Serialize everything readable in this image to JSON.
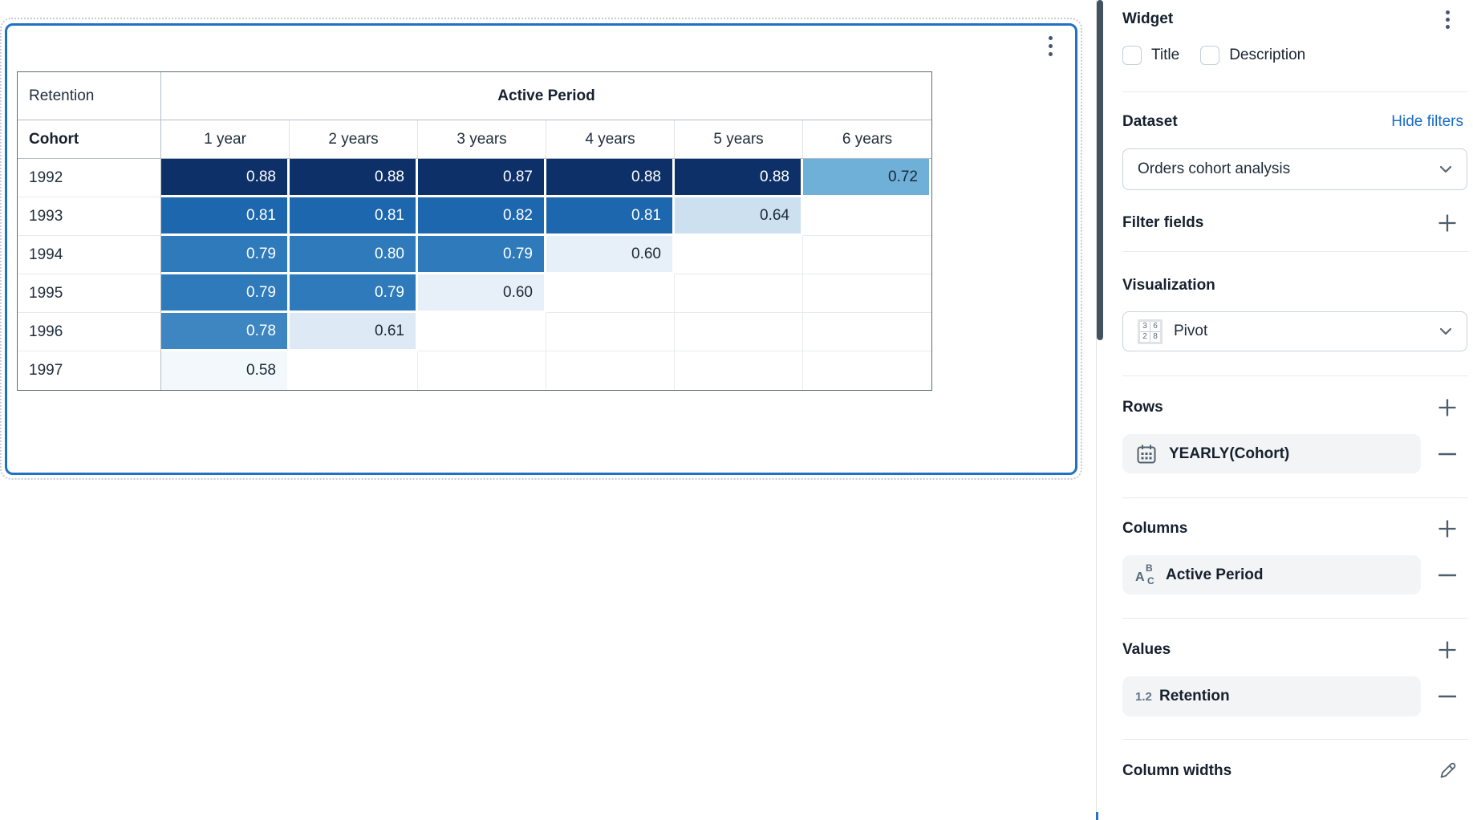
{
  "chart_data": {
    "type": "heatmap",
    "measure_label": "Retention",
    "column_group_label": "Active Period",
    "row_dimension_label": "Cohort",
    "columns": [
      "1 year",
      "2 years",
      "3 years",
      "4 years",
      "5 years",
      "6 years"
    ],
    "rows": [
      "1992",
      "1993",
      "1994",
      "1995",
      "1996",
      "1997"
    ],
    "values": [
      [
        0.88,
        0.88,
        0.87,
        0.88,
        0.88,
        0.72
      ],
      [
        0.81,
        0.81,
        0.82,
        0.81,
        0.64,
        null
      ],
      [
        0.79,
        0.8,
        0.79,
        0.6,
        null,
        null
      ],
      [
        0.79,
        0.79,
        0.6,
        null,
        null,
        null
      ],
      [
        0.78,
        0.61,
        null,
        null,
        null,
        null
      ],
      [
        0.58,
        null,
        null,
        null,
        null,
        null
      ]
    ],
    "value_format": "0.00",
    "heat_scale": [
      {
        "min": 0.85,
        "bg": "#0d3069",
        "fg": "#ffffff"
      },
      {
        "min": 0.805,
        "bg": "#1c67ae",
        "fg": "#ffffff"
      },
      {
        "min": 0.79,
        "bg": "#2e7abb",
        "fg": "#ffffff"
      },
      {
        "min": 0.775,
        "bg": "#3d86c2",
        "fg": "#ffffff"
      },
      {
        "min": 0.7,
        "bg": "#6fb0d8",
        "fg": "#1c2836"
      },
      {
        "min": 0.63,
        "bg": "#cde0f0",
        "fg": "#1c2836"
      },
      {
        "min": 0.607,
        "bg": "#dde9f5",
        "fg": "#1c2836"
      },
      {
        "min": 0.59,
        "bg": "#e7f0f9",
        "fg": "#1c2836"
      },
      {
        "min": 0,
        "bg": "#f3f8fc",
        "fg": "#1c2836"
      }
    ],
    "legend_position": "none",
    "grid": true
  },
  "colors": {
    "selection_blue": "#1e71c3",
    "link_blue": "#186cc8",
    "icon_slate": "#4c5d6d",
    "table_border": "#5d6b7a"
  },
  "sidebar": {
    "title": "Widget",
    "checkboxes": {
      "title_label": "Title",
      "description_label": "Description",
      "title_checked": false,
      "description_checked": false
    },
    "dataset": {
      "label": "Dataset",
      "link": "Hide filters",
      "selected": "Orders cohort analysis"
    },
    "filter_fields": {
      "label": "Filter fields"
    },
    "visualization": {
      "label": "Visualization",
      "selected": "Pivot",
      "icon_digits": [
        "3",
        "6",
        "2",
        "8"
      ]
    },
    "rows_section": {
      "label": "Rows",
      "item": "YEARLY(Cohort)"
    },
    "columns_section": {
      "label": "Columns",
      "item": "Active Period"
    },
    "values_section": {
      "label": "Values",
      "item": "Retention",
      "format_badge": "1.2"
    },
    "column_widths": {
      "label": "Column widths"
    }
  }
}
